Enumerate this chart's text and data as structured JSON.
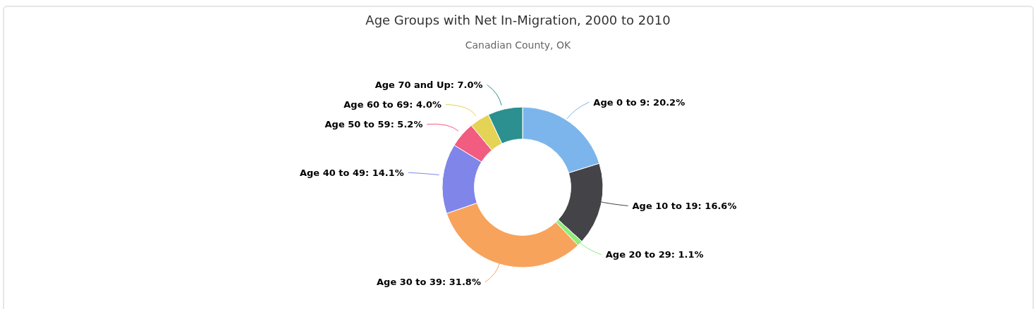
{
  "chart_data": {
    "type": "donut",
    "title": "Age Groups with Net In-Migration, 2000 to 2010",
    "subtitle": "Canadian County, OK",
    "categories": [
      "Age 0 to 9",
      "Age 10 to 19",
      "Age 20 to 29",
      "Age 30 to 39",
      "Age 40 to 49",
      "Age 50 to 59",
      "Age 60 to 69",
      "Age 70 and Up"
    ],
    "values": [
      20.2,
      16.6,
      1.1,
      31.8,
      14.1,
      5.2,
      4.0,
      7.0
    ],
    "value_labels": [
      "20.2%",
      "16.6%",
      "1.1%",
      "31.8%",
      "14.1%",
      "5.2%",
      "4.0%",
      "7.0%"
    ],
    "colors": [
      "#7cb5ec",
      "#434348",
      "#90ed7d",
      "#f7a35c",
      "#8085e9",
      "#f15c80",
      "#e4d354",
      "#2b908f"
    ]
  }
}
